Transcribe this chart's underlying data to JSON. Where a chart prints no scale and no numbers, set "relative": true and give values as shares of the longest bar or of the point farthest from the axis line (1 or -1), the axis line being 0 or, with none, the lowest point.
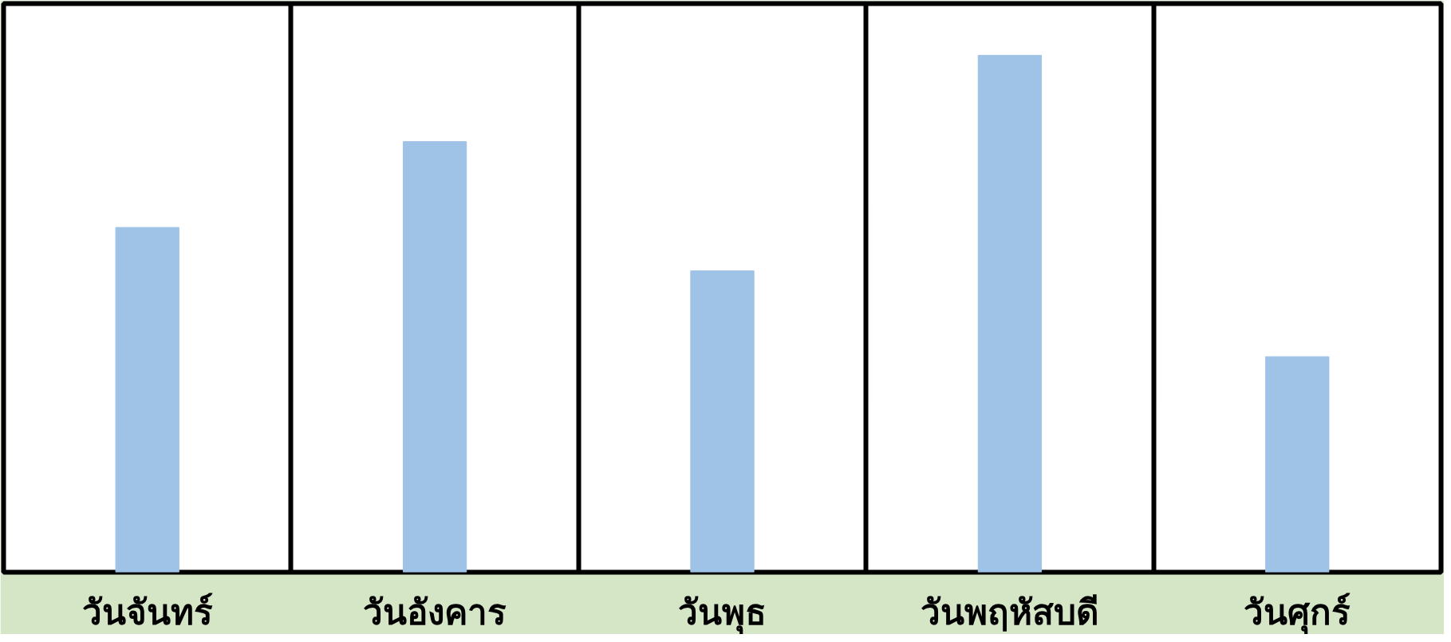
{
  "chart_data": {
    "type": "bar",
    "relative": true,
    "categories": [
      "วันจันทร์",
      "วันอังคาร",
      "วันพุธ",
      "วันพฤหัสบดี",
      "วันศุกร์"
    ],
    "values": [
      0.667,
      0.833,
      0.583,
      1,
      0.417
    ],
    "color": "#9fc3e6",
    "grid": "x"
  }
}
